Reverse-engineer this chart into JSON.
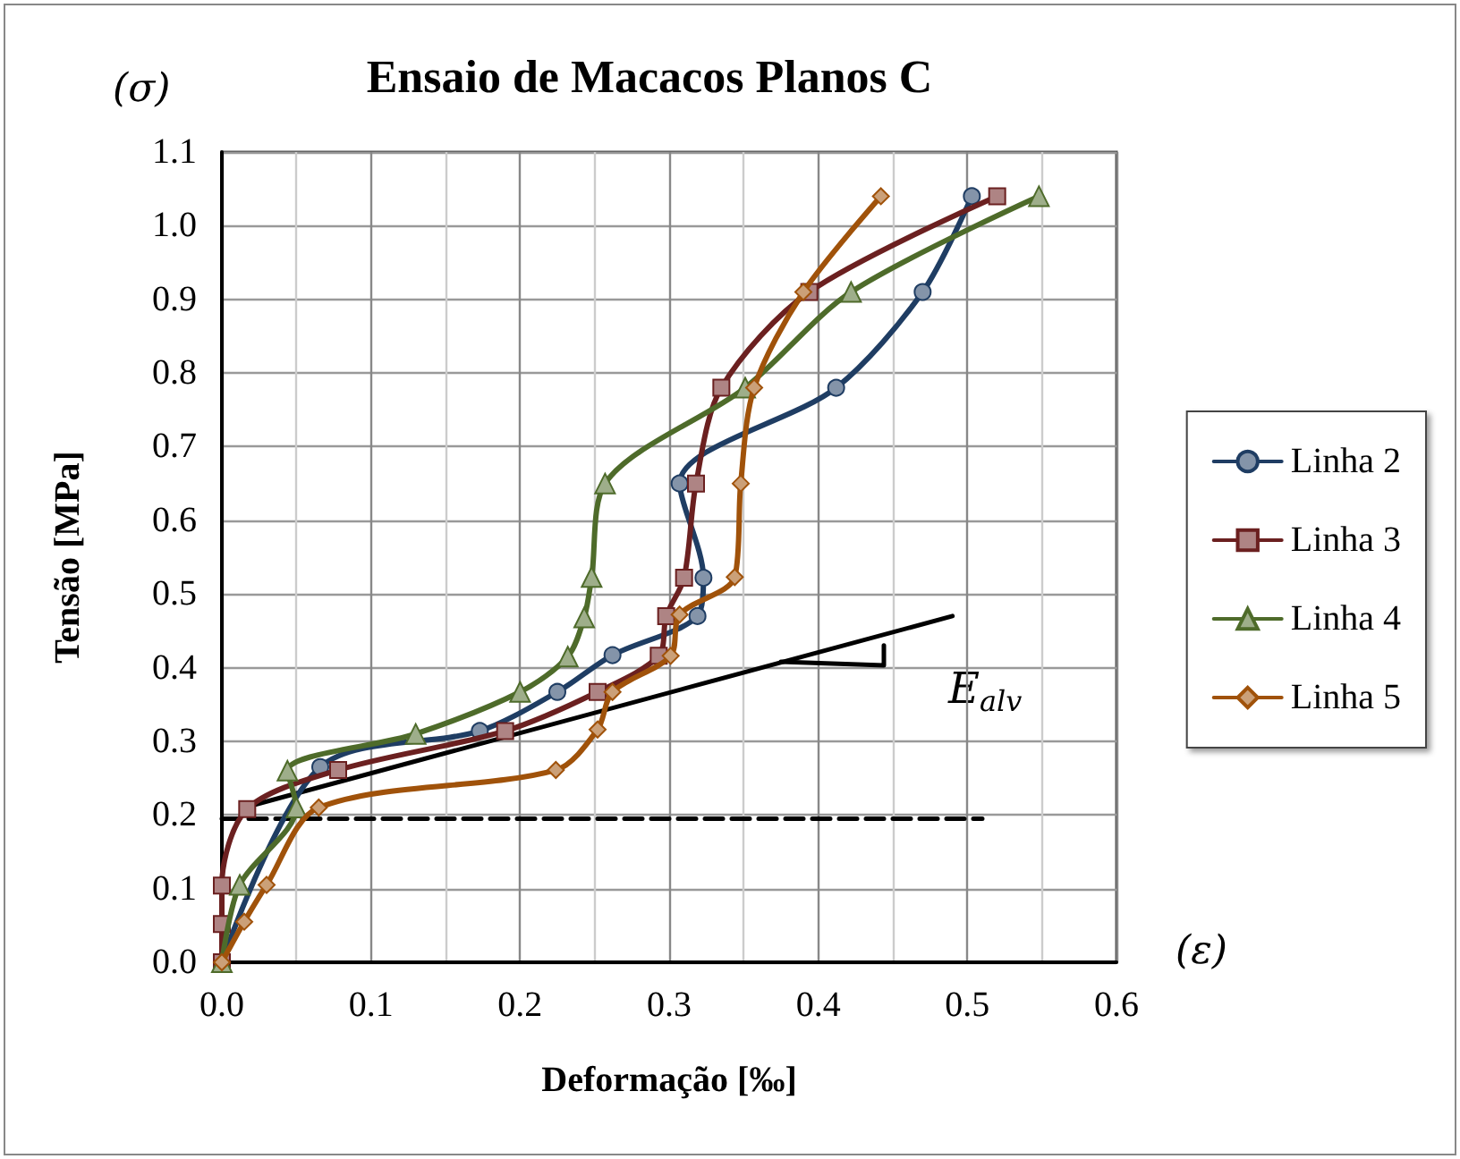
{
  "chart_data": {
    "type": "line",
    "title": "Ensaio de Macacos Planos C",
    "xlabel": "Deformação [‰]",
    "ylabel": "Tensão [MPa]",
    "annotations": [
      "(σ)",
      "(ε)",
      "E$_{alv}$"
    ],
    "xlim": [
      0,
      0.6
    ],
    "xticks": [
      {
        "value": 0,
        "label": "0.0"
      },
      0.1,
      0.2,
      0.3,
      0.4,
      0.5,
      0.6
    ],
    "ylim": [
      0,
      1.1
    ],
    "yticks": [
      {
        "value": 0,
        "label": "0.0"
      },
      0.1,
      0.2,
      0.3,
      0.4,
      0.5,
      0.6,
      0.7,
      0.8,
      0.9,
      {
        "value": 1,
        "label": "1.0"
      },
      1.1
    ],
    "grid": true,
    "legend": "right",
    "series": [
      {
        "name": "Linha 2",
        "color": "#1f3d63",
        "marker": "circle",
        "x": [
          0,
          null,
          null,
          null,
          0.066,
          0.173,
          0.225,
          0.262,
          0.319,
          0.323,
          0.307,
          0.412,
          0.47,
          0.503
        ],
        "values": [
          0,
          null,
          null,
          null,
          0.265,
          0.314,
          0.367,
          0.417,
          0.47,
          0.522,
          0.65,
          0.78,
          0.91,
          1.04
        ]
      },
      {
        "name": "Linha 3",
        "color": "#6b2020",
        "marker": "square",
        "x": [
          0,
          0,
          0,
          0.017,
          0.078,
          0.19,
          0.252,
          0.293,
          0.298,
          0.31,
          0.318,
          0.335,
          0.394,
          0.52
        ],
        "values": [
          0,
          0.052,
          0.104,
          0.208,
          0.261,
          0.314,
          0.367,
          0.416,
          0.47,
          0.522,
          0.65,
          0.78,
          0.91,
          1.04
        ]
      },
      {
        "name": "Linha 4",
        "color": "#4e6b2a",
        "marker": "triangle",
        "x": [
          0,
          null,
          0.012,
          0.05,
          0.044,
          0.13,
          0.2,
          0.232,
          0.243,
          0.248,
          0.257,
          0.351,
          0.422,
          0.548
        ],
        "values": [
          0,
          null,
          0.105,
          0.21,
          0.26,
          0.31,
          0.367,
          0.415,
          0.468,
          0.523,
          0.65,
          0.78,
          0.91,
          1.04
        ]
      },
      {
        "name": "Linha 5",
        "color": "#a0520a",
        "marker": "diamond",
        "x": [
          0,
          0.015,
          0.03,
          0.065,
          0.224,
          0.252,
          0.262,
          0.301,
          0.307,
          0.344,
          0.348,
          0.357,
          0.39,
          0.442
        ],
        "values": [
          0,
          0.055,
          0.105,
          0.21,
          0.261,
          0.316,
          0.367,
          0.416,
          0.472,
          0.523,
          0.65,
          0.78,
          0.91,
          1.04
        ]
      },
      {
        "color": "#000000",
        "marker": "none",
        "x": [
          0.015,
          0.49
        ],
        "values": [
          0.21,
          0.47
        ]
      },
      {
        "color": "#000000",
        "marker": "none",
        "x": [
          0.375,
          0.444,
          0.444
        ],
        "values": [
          0.408,
          0.403,
          0.43
        ]
      },
      {
        "color": "#000000",
        "marker": "none",
        "line_style": "dashed",
        "x": [
          0,
          0.51
        ],
        "values": [
          0.195,
          0.195
        ]
      }
    ]
  }
}
